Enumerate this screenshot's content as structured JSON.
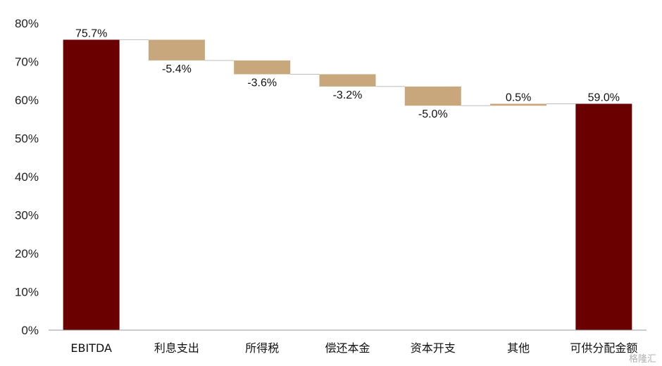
{
  "chart_data": {
    "type": "bar",
    "subtype": "waterfall",
    "categories": [
      "EBITDA",
      "利息支出",
      "所得税",
      "偿还本金",
      "资本开支",
      "其他",
      "可供分配金额"
    ],
    "values": [
      75.7,
      -5.4,
      -3.6,
      -3.2,
      -5.0,
      0.5,
      59.0
    ],
    "value_labels": [
      "75.7%",
      "-5.4%",
      "-3.6%",
      "-3.2%",
      "-5.0%",
      "0.5%",
      "59.0%"
    ],
    "bar_kinds": [
      "total",
      "delta",
      "delta",
      "delta",
      "delta",
      "delta",
      "total"
    ],
    "ylim": [
      0,
      80
    ],
    "yticks": [
      0,
      10,
      20,
      30,
      40,
      50,
      60,
      70,
      80
    ],
    "ytick_labels": [
      "0%",
      "10%",
      "20%",
      "30%",
      "40%",
      "50%",
      "60%",
      "70%",
      "80%"
    ],
    "grid": false,
    "colors": {
      "total": "#6b0000",
      "delta": "#c9a77c",
      "connector": "#bdbdbd"
    }
  },
  "watermark": {
    "text": "格隆汇"
  }
}
